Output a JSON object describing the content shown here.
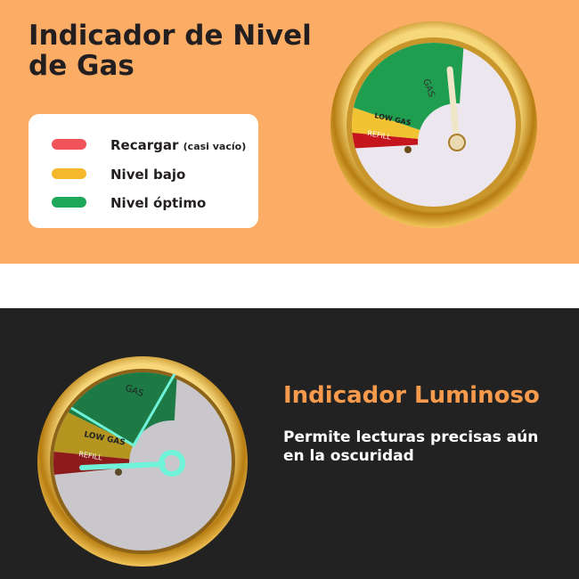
{
  "header": {
    "title_lines": [
      "Indicador de Nivel",
      "de Gas"
    ]
  },
  "legend": [
    {
      "label": "Recargar",
      "note": "(casi vacío)"
    },
    {
      "label": "Nivel bajo"
    },
    {
      "label": "Nivel óptimo"
    }
  ],
  "gauge_top": {
    "labels": [
      "GAS",
      "LOW GAS",
      "REFILL"
    ]
  },
  "feature": {
    "title": "Indicador Luminoso",
    "text_lines": [
      "Permite lecturas precisas aún",
      "en la oscuridad"
    ]
  },
  "gauge_bottom": {
    "labels": [
      "GAS",
      "LOW GAS",
      "REFILL"
    ]
  }
}
